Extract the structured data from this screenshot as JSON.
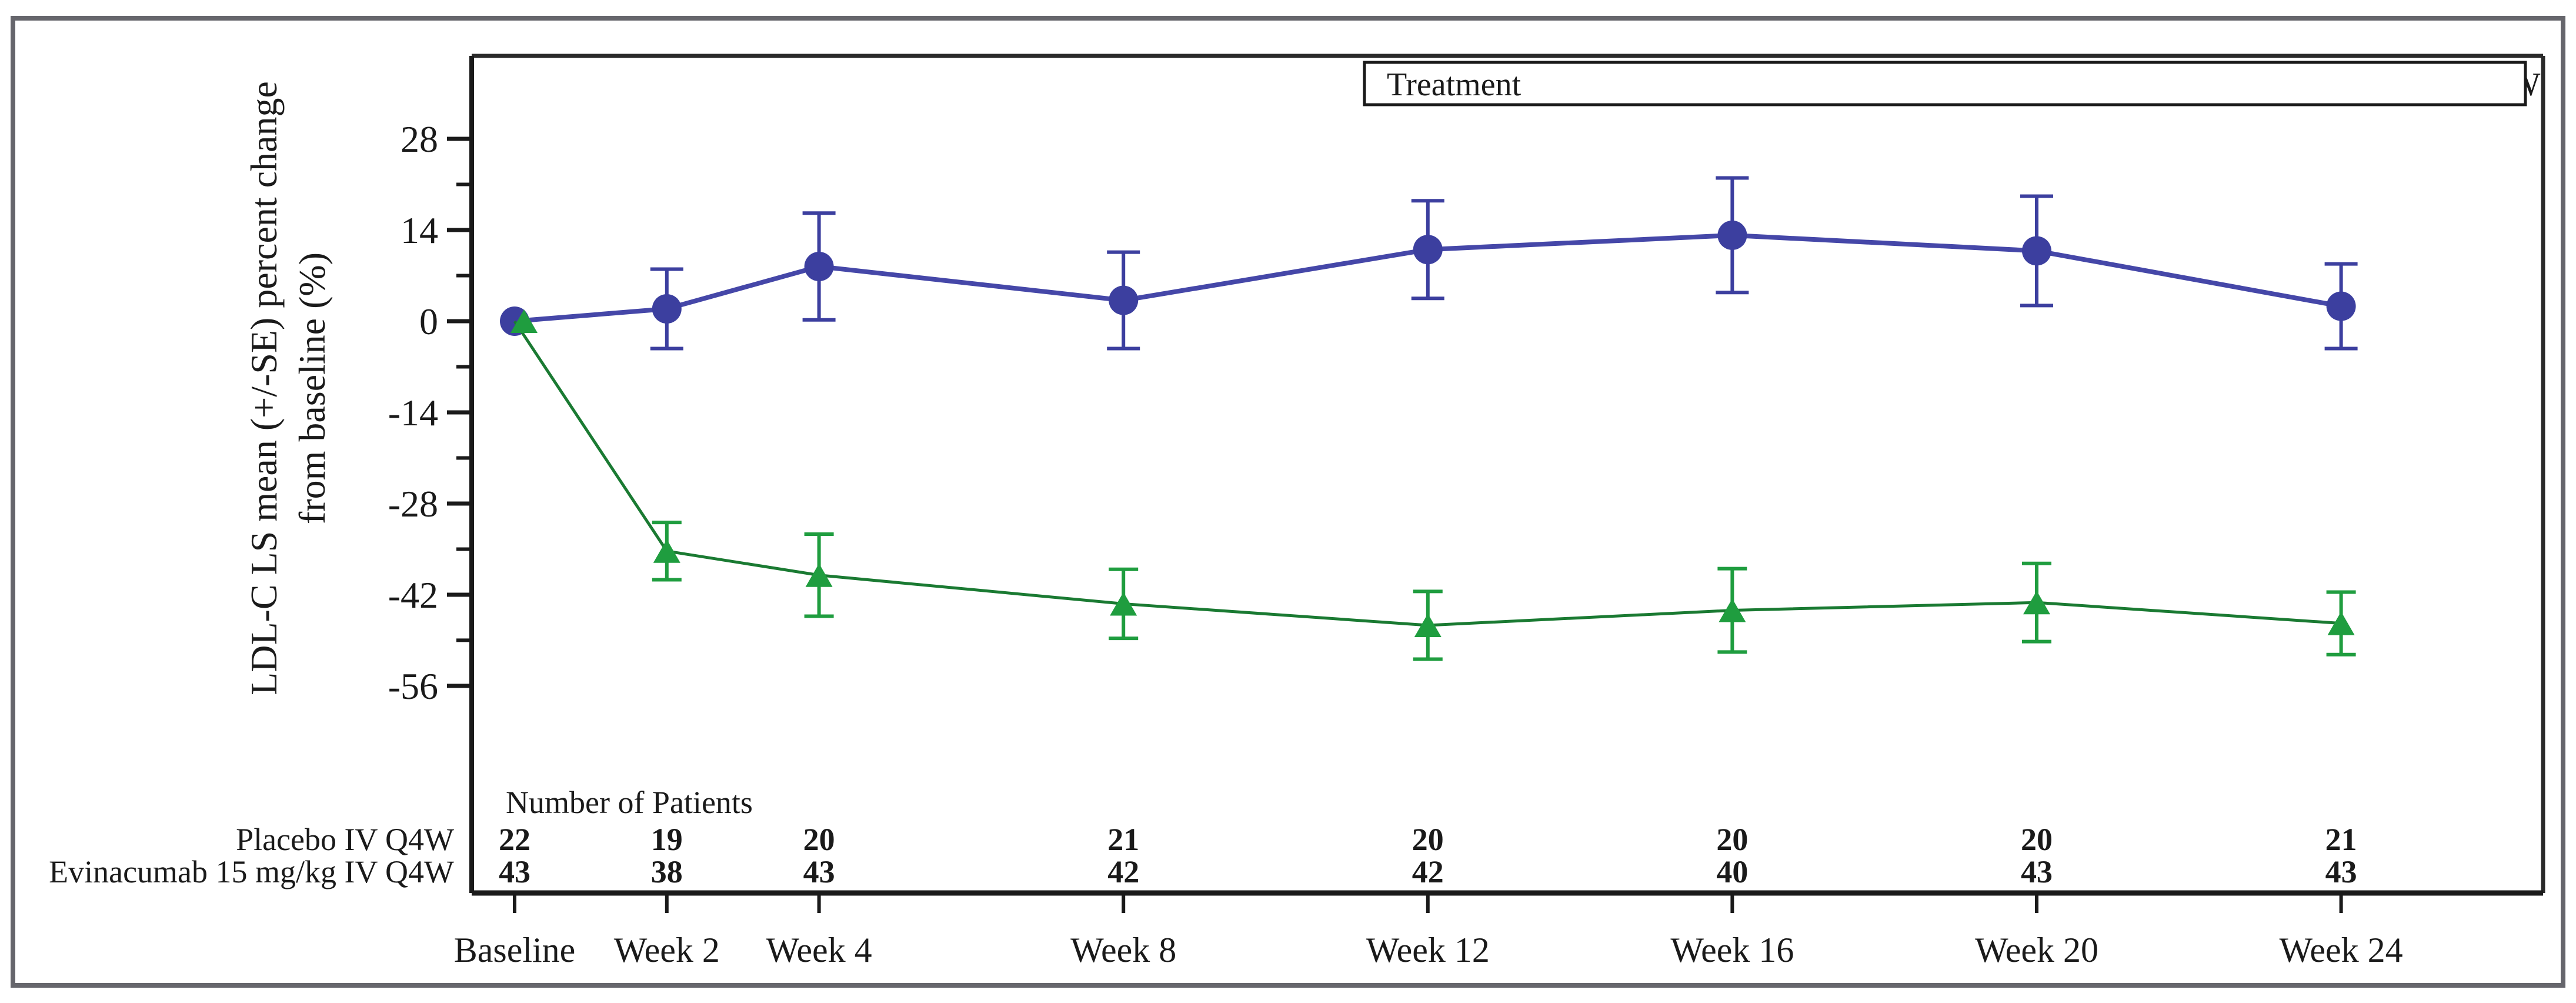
{
  "chart_data": {
    "type": "line",
    "title": "",
    "legend_title": "Treatment",
    "legend_position": "top-right",
    "grid": false,
    "ylabel_line1": "LDL-C LS mean (+/-SE) percent change",
    "ylabel_line2": "from baseline (%)",
    "patients_header": "Number of Patients",
    "categories": [
      "Baseline",
      "Week 2",
      "Week 4",
      "Week 8",
      "Week 12",
      "Week 16",
      "Week 20",
      "Week 24"
    ],
    "x_weeks": [
      0,
      2,
      4,
      8,
      12,
      16,
      20,
      24
    ],
    "y_major_ticks": [
      28,
      14,
      0,
      -14,
      -28,
      -42,
      -56
    ],
    "y_minor_ticks": [
      21,
      7,
      -7,
      -21,
      -35,
      -49
    ],
    "ylim": [
      -63,
      35
    ],
    "series": [
      {
        "name": "Placebo IV Q4W",
        "marker": "circle",
        "color": "#3c3f9f",
        "line_color": "#4547a8",
        "count_color": "#453f9f",
        "values": [
          0,
          1.9,
          8.4,
          3.2,
          11.0,
          13.2,
          10.8,
          2.3
        ],
        "se": [
          0,
          6.1,
          8.2,
          7.4,
          7.5,
          8.8,
          8.4,
          6.5
        ],
        "n_patients": [
          22,
          19,
          20,
          21,
          20,
          20,
          20,
          21
        ]
      },
      {
        "name": "Evinacumab 15 mg/kg IV Q4W",
        "marker": "triangle",
        "color": "#1f9d3f",
        "line_color": "#1a7a32",
        "count_color": "#348841",
        "values": [
          0,
          -35.3,
          -39.0,
          -43.4,
          -46.7,
          -44.4,
          -43.2,
          -46.4
        ],
        "se": [
          0,
          4.4,
          6.3,
          5.3,
          5.2,
          6.4,
          6.0,
          4.8
        ],
        "n_patients": [
          43,
          38,
          43,
          42,
          42,
          40,
          43,
          43
        ]
      }
    ],
    "colors": {
      "text": "#1a1a1a",
      "frame": "#2a2a2a",
      "outer_border": "#66666c",
      "background": "#ffffff"
    }
  }
}
